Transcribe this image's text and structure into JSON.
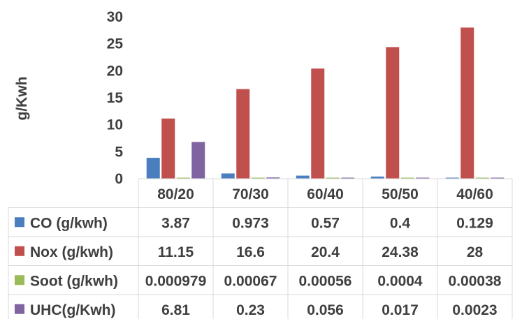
{
  "chart_data": {
    "type": "bar",
    "categories": [
      "80/20",
      "70/30",
      "60/40",
      "50/50",
      "40/60"
    ],
    "ylabel": "g/Kwh",
    "ylim": [
      0,
      30
    ],
    "yticks": [
      "0",
      "5",
      "10",
      "15",
      "20",
      "25",
      "30"
    ],
    "grid": false,
    "legend": "data table below chart",
    "series": [
      {
        "name": "CO (g/kwh)",
        "color": "#4a7ebf",
        "values": [
          3.87,
          0.973,
          0.57,
          0.4,
          0.129
        ],
        "labels": [
          "3.87",
          "0.973",
          "0.57",
          "0.4",
          "0.129"
        ]
      },
      {
        "name": "Nox (g/kwh)",
        "color": "#c0504d",
        "values": [
          11.15,
          16.6,
          20.4,
          24.38,
          28
        ],
        "labels": [
          "11.15",
          "16.6",
          "20.4",
          "24.38",
          "28"
        ]
      },
      {
        "name": "Soot (g/kwh)",
        "color": "#9bbb59",
        "values": [
          0.000979,
          0.00067,
          0.00056,
          0.0004,
          0.00038
        ],
        "labels": [
          "0.000979",
          "0.00067",
          "0.00056",
          "0.0004",
          "0.00038"
        ]
      },
      {
        "name": "UHC(g/Kwh)",
        "color": "#8064a2",
        "values": [
          6.81,
          0.23,
          0.056,
          0.017,
          0.0023
        ],
        "labels": [
          "6.81",
          "0.23",
          "0.056",
          "0.017",
          "0.0023"
        ]
      }
    ]
  }
}
